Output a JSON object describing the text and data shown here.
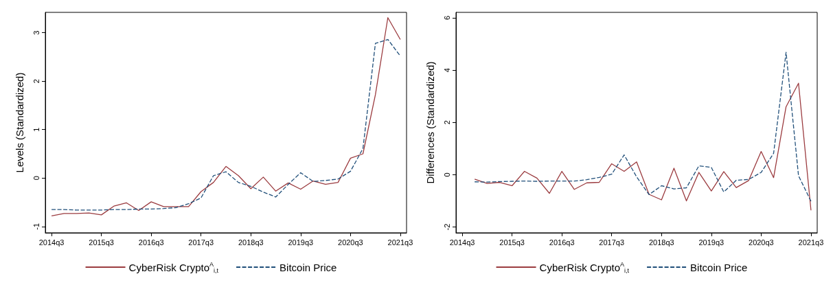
{
  "chart_data": [
    {
      "type": "line",
      "ylabel": "Levels (Standardized)",
      "legend": "bottom",
      "grid": false,
      "ylim": [
        -1.13,
        3.42
      ],
      "yticks": [
        -1,
        0,
        1,
        2,
        3
      ],
      "categories": [
        "2014q3",
        null,
        null,
        null,
        "2015q3",
        null,
        null,
        null,
        "2016q3",
        null,
        null,
        null,
        "2017q3",
        null,
        null,
        null,
        "2018q3",
        null,
        null,
        null,
        "2019q3",
        null,
        null,
        null,
        "2020q3",
        null,
        null,
        null,
        "2021q3"
      ],
      "series": [
        {
          "name": "CyberRisk Crypto$^{A}$$_{i,t}$",
          "color": "#9b3b3f",
          "line_style": "solid",
          "values": [
            -0.78,
            -0.73,
            -0.73,
            -0.72,
            -0.76,
            -0.58,
            -0.51,
            -0.67,
            -0.49,
            -0.59,
            -0.59,
            -0.59,
            -0.28,
            -0.09,
            0.24,
            0.05,
            -0.22,
            0.02,
            -0.27,
            -0.1,
            -0.23,
            -0.06,
            -0.13,
            -0.09,
            0.41,
            0.5,
            1.72,
            3.31,
            2.86
          ]
        },
        {
          "name": "Bitcoin Price",
          "color": "#1f4e79",
          "line_style": "dashed",
          "values": [
            -0.65,
            -0.65,
            -0.66,
            -0.66,
            -0.66,
            -0.65,
            -0.65,
            -0.64,
            -0.64,
            -0.63,
            -0.61,
            -0.53,
            -0.41,
            0.05,
            0.13,
            -0.09,
            -0.17,
            -0.29,
            -0.39,
            -0.13,
            0.11,
            -0.07,
            -0.05,
            -0.02,
            0.14,
            0.61,
            2.78,
            2.86,
            2.52
          ]
        }
      ]
    },
    {
      "type": "line",
      "ylabel": "Differences (Standardized)",
      "legend": "bottom",
      "grid": false,
      "ylim": [
        -2.22,
        6.21
      ],
      "yticks": [
        -2,
        0,
        2,
        4,
        6
      ],
      "categories": [
        "2014q3",
        null,
        null,
        null,
        "2015q3",
        null,
        null,
        null,
        "2016q3",
        null,
        null,
        null,
        "2017q3",
        null,
        null,
        null,
        "2018q3",
        null,
        null,
        null,
        "2019q3",
        null,
        null,
        null,
        "2020q3",
        null,
        null,
        null,
        "2021q3"
      ],
      "series": [
        {
          "name": "CyberRisk Crypto$^{A}$$_{i,t}$",
          "color": "#9b3b3f",
          "line_style": "solid",
          "values": [
            null,
            -0.17,
            -0.33,
            -0.29,
            -0.42,
            0.13,
            -0.13,
            -0.71,
            0.13,
            -0.56,
            -0.31,
            -0.29,
            0.42,
            0.13,
            0.49,
            -0.75,
            -0.96,
            0.25,
            -1.0,
            0.09,
            -0.62,
            0.12,
            -0.49,
            -0.22,
            0.89,
            -0.11,
            2.6,
            3.5,
            -1.36
          ]
        },
        {
          "name": "Bitcoin Price",
          "color": "#1f4e79",
          "line_style": "dashed",
          "values": [
            null,
            -0.27,
            -0.28,
            -0.26,
            -0.25,
            -0.24,
            -0.25,
            -0.24,
            -0.24,
            -0.24,
            -0.19,
            -0.1,
            0.02,
            0.76,
            -0.08,
            -0.76,
            -0.42,
            -0.54,
            -0.5,
            0.34,
            0.28,
            -0.66,
            -0.21,
            -0.18,
            0.09,
            0.82,
            4.68,
            -0.04,
            -1.01
          ]
        }
      ]
    }
  ]
}
